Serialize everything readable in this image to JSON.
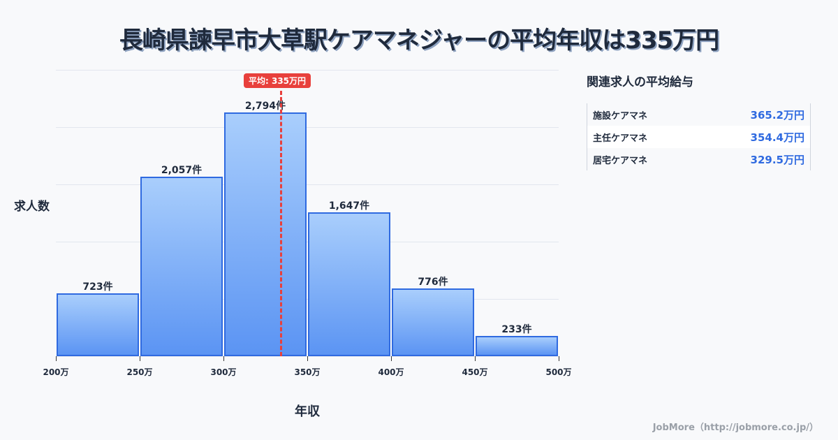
{
  "title": "長崎県諫早市大草駅ケアマネジャーの平均年収は335万円",
  "chart_data": {
    "type": "bar",
    "title": "長崎県諫早市大草駅ケアマネジャーの平均年収は335万円",
    "xlabel": "年収",
    "ylabel": "求人数",
    "x_ticks": [
      "200万",
      "250万",
      "300万",
      "350万",
      "400万",
      "450万",
      "500万"
    ],
    "categories": [
      "200万-250万",
      "250万-300万",
      "300万-350万",
      "350万-400万",
      "400万-450万",
      "450万-500万"
    ],
    "values": [
      723,
      2057,
      2794,
      1647,
      776,
      233
    ],
    "value_labels": [
      "723件",
      "2,057件",
      "2,794件",
      "1,647件",
      "776件",
      "233件"
    ],
    "ylim": [
      0,
      3280
    ],
    "grid": true,
    "mean": {
      "value": 335,
      "label": "平均: 335万円"
    }
  },
  "panel": {
    "title": "関連求人の平均給与",
    "rows": [
      {
        "name": "施設ケアマネ",
        "value": "365.2万円"
      },
      {
        "name": "主任ケアマネ",
        "value": "354.4万円"
      },
      {
        "name": "居宅ケアマネ",
        "value": "329.5万円"
      }
    ]
  },
  "footer": "JobMore（http://jobmore.co.jp/）",
  "colors": {
    "bar": "#5b94f3",
    "bar_border": "#2f6ae0",
    "mean": "#e8403c",
    "accent": "#2f6ae0"
  }
}
